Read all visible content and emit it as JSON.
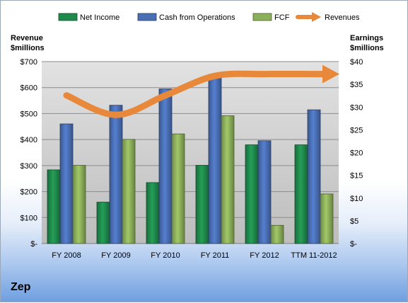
{
  "company": "Zep",
  "chart_data": {
    "type": "bar",
    "categories": [
      "FY 2008",
      "FY 2009",
      "FY 2010",
      "FY 2011",
      "FY 2012",
      "TTM 11-2012"
    ],
    "series": [
      {
        "name": "Net Income",
        "axis": "right",
        "color": "#1f8a4c",
        "values": [
          16.2,
          9.1,
          13.4,
          17.2,
          21.7,
          21.7
        ]
      },
      {
        "name": "Cash from Operations",
        "axis": "right",
        "color": "#4a6fb5",
        "values": [
          26.3,
          30.4,
          34.0,
          37.2,
          22.6,
          29.4
        ]
      },
      {
        "name": "FCF",
        "axis": "right",
        "color": "#8caf5a",
        "values": [
          17.2,
          22.9,
          24.1,
          28.1,
          4.0,
          10.9
        ]
      },
      {
        "name": "Revenues",
        "axis": "left",
        "type": "line",
        "color": "#e8883a",
        "values": [
          570,
          495,
          570,
          645,
          652,
          652
        ]
      }
    ],
    "left_axis": {
      "title_lines": [
        "Revenue",
        "$millions"
      ],
      "ylim": [
        0,
        700
      ],
      "ticks": [
        0,
        100,
        200,
        300,
        400,
        500,
        600,
        700
      ],
      "tick_labels": [
        "$-",
        "$100",
        "$200",
        "$300",
        "$400",
        "$500",
        "$600",
        "$700"
      ]
    },
    "right_axis": {
      "title_lines": [
        "Earnings",
        "$millions"
      ],
      "ylim": [
        0,
        40
      ],
      "ticks": [
        0,
        5,
        10,
        15,
        20,
        25,
        30,
        35,
        40
      ],
      "tick_labels": [
        "$-",
        "$5",
        "$10",
        "$15",
        "$20",
        "$25",
        "$30",
        "$35",
        "$40"
      ]
    },
    "grid": true,
    "legend": "top"
  }
}
